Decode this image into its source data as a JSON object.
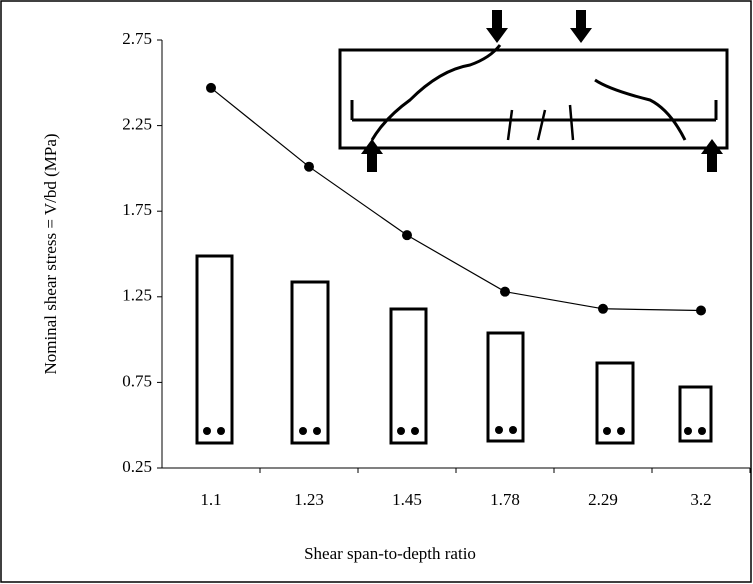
{
  "chart_data": {
    "type": "line",
    "x_label": "Shear span-to-depth ratio",
    "y_label": "Nominal shear stress = V/bd (MPa)",
    "categories": [
      "1.1",
      "1.23",
      "1.45",
      "1.78",
      "2.29",
      "3.2"
    ],
    "values": [
      2.47,
      2.01,
      1.61,
      1.28,
      1.18,
      1.17
    ],
    "color": "#000000",
    "ylim": [
      0.25,
      2.75
    ],
    "yticks": [
      0.25,
      0.75,
      1.25,
      1.75,
      2.25,
      2.75
    ],
    "grid": false
  }
}
